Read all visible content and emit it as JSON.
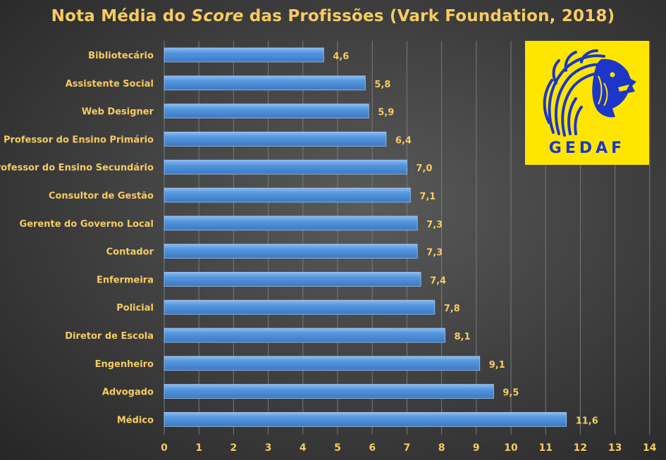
{
  "title": {
    "part1": "Nota Média do ",
    "emphasis": "Score",
    "part2": " das Profissões (Vark Foundation,  2018)"
  },
  "logo": {
    "text": "GEDAF",
    "icon": "lion-head-icon",
    "background": "#ffe600",
    "color": "#1d35c8"
  },
  "colors": {
    "bar": "#4a8fd8",
    "bar_edge": "#9cc6f2",
    "text": "#f5cc63",
    "grid": "#7a7a7a"
  },
  "chart_data": {
    "type": "bar",
    "orientation": "horizontal",
    "title": "Nota Média do Score das Profissões (Vark Foundation,  2018)",
    "categories": [
      "Bibliotecário",
      "Assistente Social",
      "Web Designer",
      "Professor do Ensino Primário",
      "Professor do Ensino Secundário",
      "Consultor de Gestão",
      "Gerente do Governo Local",
      "Contador",
      "Enfermeira",
      "Policial",
      "Diretor de Escola",
      "Engenheiro",
      "Advogado",
      "Médico"
    ],
    "values": [
      4.6,
      5.8,
      5.9,
      6.4,
      7.0,
      7.1,
      7.3,
      7.3,
      7.4,
      7.8,
      8.1,
      9.1,
      9.5,
      11.6
    ],
    "value_labels": [
      "4,6",
      "5,8",
      "5,9",
      "6,4",
      "7,0",
      "7,1",
      "7,3",
      "7,3",
      "7,4",
      "7,8",
      "8,1",
      "9,1",
      "9,5",
      "11,6"
    ],
    "xlim": [
      0,
      14
    ],
    "xticks": [
      "0",
      "1",
      "2",
      "3",
      "4",
      "5",
      "6",
      "7",
      "8",
      "9",
      "10",
      "11",
      "12",
      "13",
      "14"
    ],
    "grid": true,
    "legend": "none"
  }
}
